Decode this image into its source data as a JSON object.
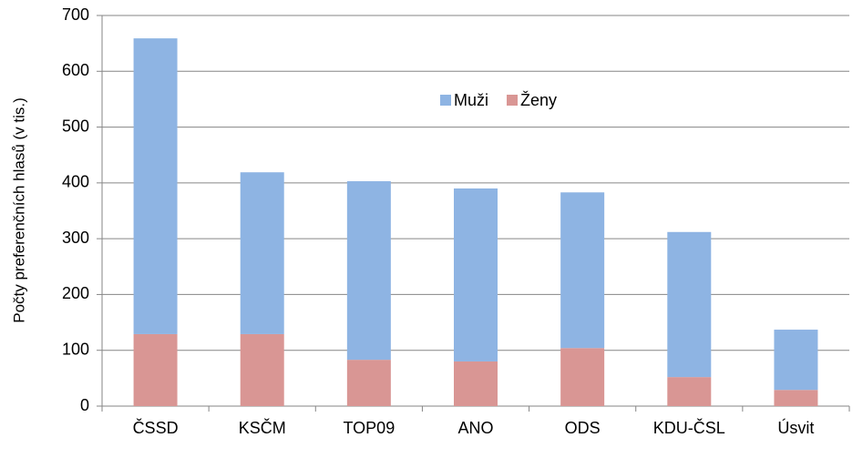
{
  "chart_data": {
    "type": "stacked_bar",
    "y_label": "Počty preferenčních hlasů (v tis.)",
    "categories": [
      "ČSSD",
      "KSČM",
      "TOP09",
      "ANO",
      "ODS",
      "KDU-ČSL",
      "Úsvit"
    ],
    "series": [
      {
        "name": "Muži",
        "color": "#8eb4e3",
        "values": [
          530,
          290,
          320,
          310,
          279,
          260,
          108
        ]
      },
      {
        "name": "Ženy",
        "color": "#d99694",
        "values": [
          129,
          129,
          83,
          80,
          104,
          52,
          29
        ]
      }
    ],
    "stack_order": [
      "Ženy",
      "Muži"
    ],
    "ylim": [
      0,
      700
    ],
    "yticks": [
      0,
      100,
      200,
      300,
      400,
      500,
      600,
      700
    ],
    "grid": true
  }
}
